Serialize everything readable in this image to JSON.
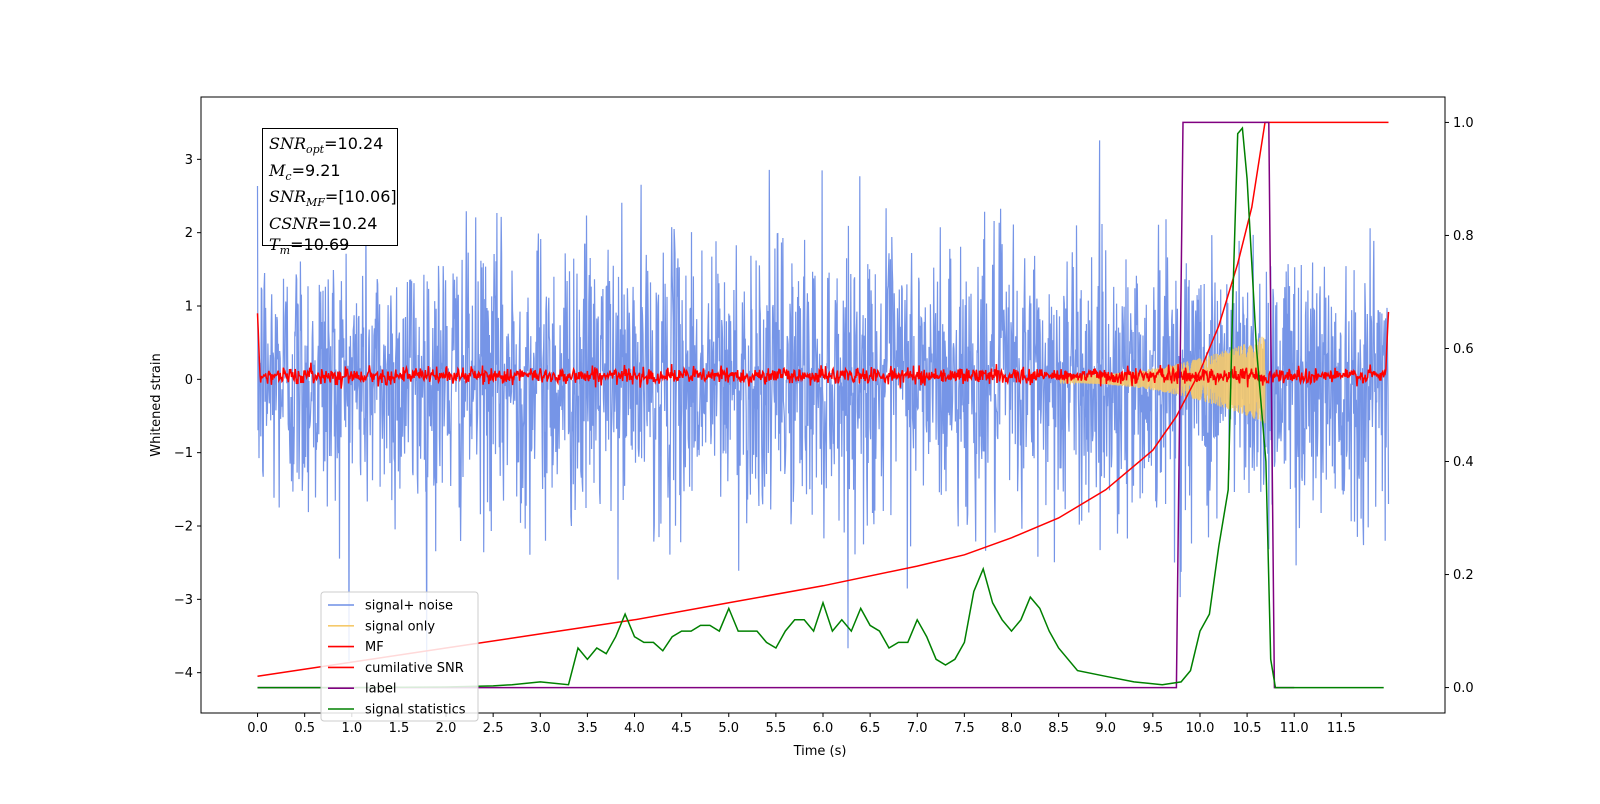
{
  "chart_data": {
    "type": "line",
    "title": "",
    "xlabel": "Time (s)",
    "ylabel": "Whitened strain",
    "xlim": [
      -0.6,
      12.6
    ],
    "ylim": [
      -4.55,
      3.85
    ],
    "y2lim": [
      -0.045,
      1.045
    ],
    "xticks": [
      0.0,
      0.5,
      1.0,
      1.5,
      2.0,
      2.5,
      3.0,
      3.5,
      4.0,
      4.5,
      5.0,
      5.5,
      6.0,
      6.5,
      7.0,
      7.5,
      8.0,
      8.5,
      9.0,
      9.5,
      10.0,
      10.5,
      11.0,
      11.5
    ],
    "xtick_labels": [
      "0.0",
      "0.5",
      "1.0",
      "1.5",
      "2.0",
      "2.5",
      "3.0",
      "3.5",
      "4.0",
      "4.5",
      "5.0",
      "5.5",
      "6.0",
      "6.5",
      "7.0",
      "7.5",
      "8.0",
      "8.5",
      "9.0",
      "9.5",
      "10.0",
      "10.5",
      "11.0",
      "11.5"
    ],
    "yticks": [
      -4,
      -3,
      -2,
      -1,
      0,
      1,
      2,
      3
    ],
    "ytick_labels": [
      "−4",
      "−3",
      "−2",
      "−1",
      "0",
      "1",
      "2",
      "3"
    ],
    "y2ticks": [
      0.0,
      0.2,
      0.4,
      0.6,
      0.8,
      1.0
    ],
    "y2tick_labels": [
      "0.0",
      "0.2",
      "0.4",
      "0.6",
      "0.8",
      "1.0"
    ],
    "grid": false,
    "legend_position": "lower-left",
    "annotation": {
      "snr_opt": "=10.24",
      "mc": "=9.21",
      "snr_mf": "=[10.06]",
      "csnr": "=10.24",
      "tm": "=10.69"
    },
    "series": [
      {
        "name": "signal+ noise",
        "axis": "left",
        "color": "#6f8fe6",
        "description_values": "white noise envelope approx ±2 (peaks near 3.4 / −3.9) from 0.0 to 12.0 s",
        "x_range": [
          0.0,
          12.0
        ],
        "envelope": [
          -2.2,
          2.3
        ]
      },
      {
        "name": "signal only",
        "axis": "left",
        "color": "#f5c96b",
        "chirp_start": 8.5,
        "chirp_end": 10.69,
        "amp_start": 0.05,
        "amp_end": 0.6
      },
      {
        "name": "MF",
        "axis": "left",
        "color": "#ff0000",
        "x_range": [
          0.0,
          12.0
        ],
        "envelope": [
          -0.12,
          0.18
        ]
      },
      {
        "name": "cumilative SNR",
        "axis": "right",
        "color": "#ff0000",
        "x": [
          0.0,
          1.0,
          2.0,
          3.0,
          4.0,
          5.0,
          6.0,
          7.0,
          7.5,
          8.0,
          8.5,
          9.0,
          9.5,
          9.75,
          10.0,
          10.2,
          10.4,
          10.55,
          10.69,
          12.0
        ],
        "values": [
          0.02,
          0.045,
          0.07,
          0.095,
          0.12,
          0.15,
          0.18,
          0.215,
          0.235,
          0.265,
          0.3,
          0.35,
          0.42,
          0.48,
          0.56,
          0.64,
          0.75,
          0.85,
          1.0,
          1.0
        ]
      },
      {
        "name": "label",
        "axis": "right",
        "color": "#800080",
        "x": [
          0.0,
          9.75,
          9.82,
          10.73,
          10.79,
          11.0
        ],
        "values": [
          0.0,
          0.0,
          1.0,
          1.0,
          0.0,
          0.0
        ]
      },
      {
        "name": "signal statistics",
        "axis": "right",
        "color": "#008000",
        "x": [
          0.0,
          1.0,
          2.0,
          2.5,
          2.7,
          3.0,
          3.3,
          3.4,
          3.5,
          3.6,
          3.7,
          3.8,
          3.9,
          4.0,
          4.1,
          4.2,
          4.3,
          4.4,
          4.5,
          4.6,
          4.7,
          4.8,
          4.9,
          5.0,
          5.1,
          5.2,
          5.3,
          5.4,
          5.5,
          5.6,
          5.7,
          5.8,
          5.9,
          6.0,
          6.1,
          6.2,
          6.3,
          6.4,
          6.5,
          6.6,
          6.7,
          6.8,
          6.9,
          7.0,
          7.1,
          7.2,
          7.3,
          7.4,
          7.5,
          7.6,
          7.7,
          7.8,
          7.9,
          8.0,
          8.1,
          8.2,
          8.3,
          8.4,
          8.5,
          8.7,
          9.0,
          9.3,
          9.6,
          9.8,
          9.9,
          10.0,
          10.1,
          10.2,
          10.3,
          10.35,
          10.4,
          10.45,
          10.5,
          10.6,
          10.7,
          10.75,
          10.8,
          11.0,
          11.5,
          11.95
        ],
        "values": [
          0.0,
          0.0,
          0.001,
          0.003,
          0.005,
          0.01,
          0.005,
          0.07,
          0.05,
          0.07,
          0.06,
          0.09,
          0.13,
          0.09,
          0.08,
          0.08,
          0.065,
          0.09,
          0.1,
          0.1,
          0.11,
          0.11,
          0.1,
          0.14,
          0.1,
          0.1,
          0.1,
          0.08,
          0.07,
          0.1,
          0.12,
          0.12,
          0.1,
          0.15,
          0.1,
          0.12,
          0.1,
          0.14,
          0.11,
          0.1,
          0.07,
          0.08,
          0.08,
          0.12,
          0.09,
          0.05,
          0.04,
          0.05,
          0.08,
          0.17,
          0.21,
          0.15,
          0.12,
          0.1,
          0.12,
          0.16,
          0.14,
          0.1,
          0.07,
          0.03,
          0.02,
          0.01,
          0.005,
          0.01,
          0.03,
          0.1,
          0.13,
          0.25,
          0.35,
          0.7,
          0.98,
          0.99,
          0.9,
          0.6,
          0.4,
          0.05,
          0.0,
          0.0,
          0.0,
          0.0
        ]
      }
    ]
  }
}
